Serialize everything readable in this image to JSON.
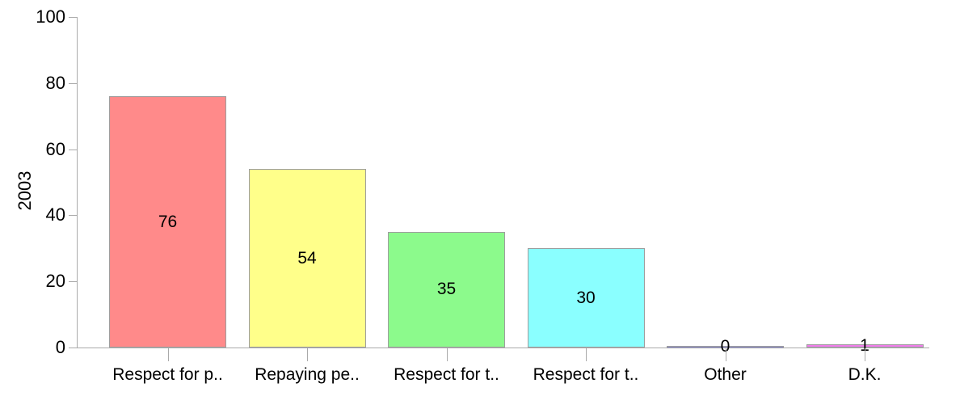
{
  "chart_data": {
    "type": "bar",
    "title": "",
    "xlabel": "",
    "ylabel": "2003",
    "categories": [
      "Respect for p..",
      "Repaying pe..",
      "Respect for t..",
      "Respect for t..",
      "Other",
      "D.K."
    ],
    "values": [
      76,
      54,
      35,
      30,
      0,
      1
    ],
    "value_labels": [
      "76",
      "54",
      "35",
      "30",
      "0",
      "1"
    ],
    "bar_colors": [
      "#ff8a8a",
      "#ffff8a",
      "#8cfa8c",
      "#8affff",
      "#8a8acb",
      "#f07dec"
    ],
    "ylim": [
      0,
      100
    ],
    "yticks": [
      0,
      20,
      40,
      60,
      80,
      100
    ],
    "grid": "off",
    "legend_position": "none"
  },
  "colors": {
    "axis": "#aaaaaa",
    "bar_border": "#9e9e9e",
    "text": "#000000",
    "background": "#ffffff"
  }
}
